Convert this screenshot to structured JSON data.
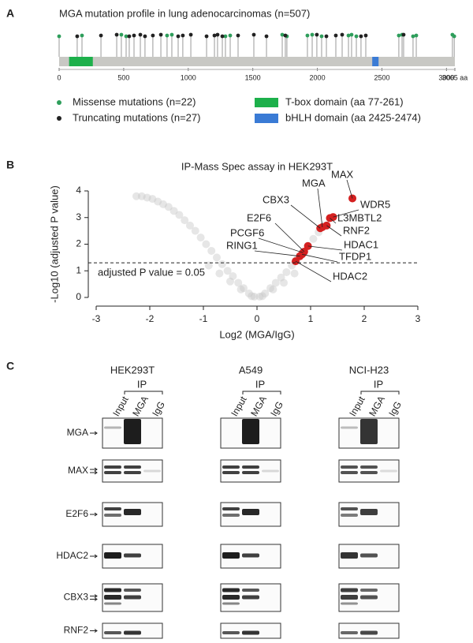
{
  "panel_labels": [
    "A",
    "B",
    "C"
  ],
  "chart_data": [
    {
      "type": "lollipop",
      "title": "MGA mutation profile in lung adenocarcinomas (n=507)",
      "xlim": [
        0,
        3065
      ],
      "xticks": [
        0,
        500,
        1000,
        1500,
        2000,
        2500,
        3000,
        {
          "value": 3065,
          "label": "3065 aa"
        }
      ],
      "series": [
        {
          "name": "Missense mutations (n=22)",
          "color": "#2e9e5b",
          "x": [
            0,
            177,
            482,
            519,
            836,
            873,
            1288,
            1325,
            1728,
            1764,
            1923,
            1960,
            2033,
            2241,
            2265,
            2302,
            2631,
            2656,
            2741,
            2766,
            3046,
            3060
          ]
        },
        {
          "name": "Truncating mutations (n=27)",
          "color": "#222222",
          "x": [
            140,
            324,
            446,
            543,
            580,
            629,
            665,
            726,
            788,
            922,
            958,
            1020,
            1142,
            1203,
            1227,
            1264,
            1386,
            1508,
            1606,
            1752,
            1996,
            2070,
            2143,
            2192,
            2338,
            2375,
            2668
          ]
        }
      ],
      "domains": [
        {
          "name": "T-box domain (aa 77-261)",
          "color": "#1db04b",
          "start": 77,
          "end": 261
        },
        {
          "name": "bHLH domain (aa 2425-2474)",
          "color": "#3a7bd5",
          "start": 2425,
          "end": 2474
        }
      ]
    },
    {
      "type": "scatter",
      "title": "IP-Mass Spec assay in HEK293T",
      "xlabel": "Log2 (MGA/IgG)",
      "ylabel": "-Log10 (adjusted P value)",
      "xlim": [
        -3,
        3
      ],
      "ylim": [
        0,
        4
      ],
      "xticks": [
        -3,
        -2,
        -1,
        0,
        1,
        2,
        3
      ],
      "yticks": [
        0,
        1,
        2,
        3,
        4
      ],
      "threshold": {
        "value": 1.3,
        "label": "adjusted P value = 0.05"
      },
      "series": [
        {
          "color": "#c8c8c8",
          "x": [
            -2.25,
            -2.15,
            -2.05,
            -1.95,
            -1.85,
            -1.75,
            -1.65,
            -1.55,
            -1.45,
            -1.35,
            -1.25,
            -1.15,
            -1.05,
            -0.95,
            -0.85,
            -0.75,
            -0.65,
            -0.55,
            -0.45,
            -0.35,
            -0.25,
            -0.15,
            -0.05,
            0.05,
            0.15,
            0.25,
            0.35,
            0.45,
            0.55,
            0.65,
            0.75,
            0.85,
            0.95,
            1.05,
            1.15,
            1.25,
            -0.9,
            -0.7,
            -0.5,
            -0.3,
            -0.1,
            0.1,
            0.3,
            0.5,
            0.7
          ],
          "y": [
            3.8,
            3.8,
            3.75,
            3.7,
            3.6,
            3.5,
            3.4,
            3.25,
            3.1,
            2.9,
            2.7,
            2.5,
            2.25,
            2.0,
            1.75,
            1.5,
            1.25,
            1.0,
            0.8,
            0.55,
            0.35,
            0.15,
            0.03,
            0.03,
            0.15,
            0.35,
            0.55,
            0.75,
            0.95,
            1.2,
            1.45,
            1.7,
            1.95,
            2.2,
            2.45,
            2.7,
            1.2,
            0.9,
            0.6,
            0.3,
            0.05,
            0.05,
            0.3,
            0.55,
            0.9
          ]
        },
        {
          "color": "#d42020",
          "labels": [
            "MAX",
            "WDR5",
            "L3MBTL2",
            "RNF2",
            "MGA",
            "CBX3",
            "HDAC1",
            "E2F6",
            "TFDP1",
            "PCGF6",
            "RING1",
            "HDAC2"
          ],
          "x": [
            1.78,
            1.42,
            1.36,
            1.3,
            1.22,
            1.18,
            0.95,
            0.88,
            0.84,
            0.86,
            0.8,
            0.72
          ],
          "y": [
            3.72,
            3.02,
            2.98,
            2.7,
            2.64,
            2.6,
            1.93,
            1.72,
            1.62,
            1.68,
            1.55,
            1.36
          ]
        }
      ]
    }
  ],
  "panel_c": {
    "cell_lines": [
      "HEK293T",
      "A549",
      "NCI-H23"
    ],
    "lanes": [
      "Input",
      "MGA",
      "IgG"
    ],
    "ip": "IP",
    "proteins": [
      "MGA",
      "MAX",
      "E2F6",
      "HDAC2",
      "CBX3",
      "RNF2"
    ]
  }
}
